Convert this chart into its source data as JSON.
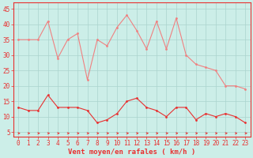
{
  "x": [
    0,
    1,
    2,
    3,
    4,
    5,
    6,
    7,
    8,
    9,
    10,
    11,
    12,
    13,
    14,
    15,
    16,
    17,
    18,
    19,
    20,
    21,
    22,
    23
  ],
  "wind_avg": [
    13,
    12,
    12,
    17,
    13,
    13,
    13,
    12,
    8,
    9,
    11,
    15,
    16,
    13,
    12,
    10,
    13,
    13,
    9,
    11,
    10,
    11,
    10,
    8
  ],
  "wind_gust": [
    35,
    35,
    35,
    41,
    29,
    35,
    37,
    22,
    35,
    33,
    39,
    43,
    38,
    32,
    41,
    32,
    42,
    30,
    27,
    26,
    25,
    20,
    20,
    19
  ],
  "avg_color": "#e83030",
  "gust_color": "#f08080",
  "background_color": "#cceee8",
  "grid_color": "#aad4ce",
  "xlabel": "Vent moyen/en rafales ( km/h )",
  "xlabel_color": "#e83030",
  "yticks": [
    5,
    10,
    15,
    20,
    25,
    30,
    35,
    40,
    45
  ],
  "xticks": [
    0,
    1,
    2,
    3,
    4,
    5,
    6,
    7,
    8,
    9,
    10,
    11,
    12,
    13,
    14,
    15,
    16,
    17,
    18,
    19,
    20,
    21,
    22,
    23
  ],
  "ylim": [
    3.5,
    47
  ],
  "xlim": [
    -0.5,
    23.5
  ],
  "tick_fontsize": 5.5,
  "xlabel_fontsize": 6.5
}
